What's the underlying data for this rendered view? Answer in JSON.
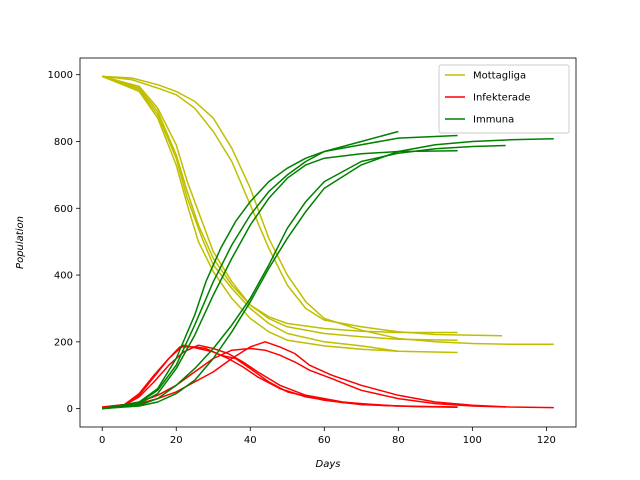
{
  "chart_data": {
    "type": "line",
    "xlabel": "Days",
    "ylabel": "Population",
    "xlim": [
      -6,
      128
    ],
    "ylim": [
      -55,
      1050
    ],
    "xticks": [
      0,
      20,
      40,
      60,
      80,
      100,
      120
    ],
    "yticks": [
      0,
      200,
      400,
      600,
      800,
      1000
    ],
    "grid": false,
    "legend_position": "top-right",
    "legend": [
      {
        "label": "Mottagliga",
        "color": "#bfbf00"
      },
      {
        "label": "Infekterade",
        "color": "#ff0000"
      },
      {
        "label": "Immuna",
        "color": "#008000"
      }
    ],
    "series": [
      {
        "group": "Mottagliga",
        "color": "#bfbf00",
        "points": [
          [
            0,
            995
          ],
          [
            10,
            960
          ],
          [
            15,
            890
          ],
          [
            20,
            760
          ],
          [
            23,
            650
          ],
          [
            26,
            550
          ],
          [
            30,
            450
          ],
          [
            35,
            370
          ],
          [
            40,
            310
          ],
          [
            45,
            275
          ],
          [
            50,
            255
          ],
          [
            60,
            240
          ],
          [
            70,
            232
          ],
          [
            80,
            228
          ],
          [
            96,
            228
          ]
        ]
      },
      {
        "group": "Mottagliga",
        "color": "#bfbf00",
        "points": [
          [
            0,
            995
          ],
          [
            10,
            965
          ],
          [
            15,
            900
          ],
          [
            20,
            790
          ],
          [
            23,
            680
          ],
          [
            27,
            560
          ],
          [
            30,
            470
          ],
          [
            35,
            380
          ],
          [
            40,
            310
          ],
          [
            45,
            270
          ],
          [
            50,
            245
          ],
          [
            60,
            225
          ],
          [
            70,
            215
          ],
          [
            80,
            208
          ],
          [
            96,
            205
          ]
        ]
      },
      {
        "group": "Mottagliga",
        "color": "#bfbf00",
        "points": [
          [
            0,
            995
          ],
          [
            10,
            950
          ],
          [
            15,
            870
          ],
          [
            20,
            730
          ],
          [
            23,
            610
          ],
          [
            26,
            500
          ],
          [
            30,
            410
          ],
          [
            35,
            330
          ],
          [
            40,
            270
          ],
          [
            45,
            230
          ],
          [
            50,
            205
          ],
          [
            60,
            188
          ],
          [
            70,
            178
          ],
          [
            80,
            172
          ],
          [
            96,
            168
          ]
        ]
      },
      {
        "group": "Mottagliga",
        "color": "#bfbf00",
        "points": [
          [
            0,
            995
          ],
          [
            10,
            955
          ],
          [
            15,
            880
          ],
          [
            20,
            750
          ],
          [
            23,
            630
          ],
          [
            27,
            510
          ],
          [
            30,
            430
          ],
          [
            35,
            360
          ],
          [
            40,
            300
          ],
          [
            45,
            255
          ],
          [
            50,
            225
          ],
          [
            60,
            200
          ],
          [
            70,
            188
          ],
          [
            80,
            172
          ]
        ]
      },
      {
        "group": "Mottagliga",
        "color": "#bfbf00",
        "points": [
          [
            0,
            995
          ],
          [
            8,
            985
          ],
          [
            15,
            960
          ],
          [
            20,
            940
          ],
          [
            25,
            900
          ],
          [
            30,
            830
          ],
          [
            35,
            740
          ],
          [
            40,
            610
          ],
          [
            45,
            480
          ],
          [
            50,
            370
          ],
          [
            55,
            300
          ],
          [
            60,
            265
          ],
          [
            70,
            245
          ],
          [
            80,
            230
          ],
          [
            90,
            222
          ],
          [
            108,
            218
          ]
        ]
      },
      {
        "group": "Mottagliga",
        "color": "#bfbf00",
        "points": [
          [
            0,
            995
          ],
          [
            8,
            990
          ],
          [
            15,
            970
          ],
          [
            20,
            950
          ],
          [
            25,
            920
          ],
          [
            30,
            870
          ],
          [
            35,
            780
          ],
          [
            40,
            660
          ],
          [
            45,
            510
          ],
          [
            50,
            400
          ],
          [
            55,
            320
          ],
          [
            60,
            270
          ],
          [
            70,
            235
          ],
          [
            80,
            210
          ],
          [
            90,
            200
          ],
          [
            100,
            195
          ],
          [
            110,
            193
          ],
          [
            122,
            193
          ]
        ]
      },
      {
        "group": "Infekterade",
        "color": "#ff0000",
        "points": [
          [
            0,
            5
          ],
          [
            6,
            12
          ],
          [
            10,
            45
          ],
          [
            14,
            100
          ],
          [
            18,
            150
          ],
          [
            21,
            185
          ],
          [
            25,
            185
          ],
          [
            28,
            180
          ],
          [
            32,
            160
          ],
          [
            36,
            150
          ],
          [
            40,
            120
          ],
          [
            45,
            80
          ],
          [
            50,
            50
          ],
          [
            60,
            25
          ],
          [
            70,
            12
          ],
          [
            80,
            8
          ],
          [
            96,
            5
          ]
        ]
      },
      {
        "group": "Infekterade",
        "color": "#ff0000",
        "points": [
          [
            0,
            3
          ],
          [
            6,
            10
          ],
          [
            10,
            35
          ],
          [
            14,
            80
          ],
          [
            18,
            130
          ],
          [
            22,
            170
          ],
          [
            26,
            190
          ],
          [
            30,
            180
          ],
          [
            34,
            165
          ],
          [
            38,
            140
          ],
          [
            42,
            110
          ],
          [
            48,
            70
          ],
          [
            55,
            40
          ],
          [
            65,
            20
          ],
          [
            75,
            10
          ],
          [
            85,
            6
          ],
          [
            96,
            4
          ]
        ]
      },
      {
        "group": "Infekterade",
        "color": "#ff0000",
        "points": [
          [
            0,
            4
          ],
          [
            6,
            12
          ],
          [
            10,
            40
          ],
          [
            14,
            95
          ],
          [
            18,
            150
          ],
          [
            22,
            190
          ],
          [
            26,
            180
          ],
          [
            30,
            170
          ],
          [
            34,
            150
          ],
          [
            38,
            125
          ],
          [
            42,
            95
          ],
          [
            48,
            60
          ],
          [
            55,
            35
          ],
          [
            65,
            18
          ],
          [
            80,
            8
          ]
        ]
      },
      {
        "group": "Infekterade",
        "color": "#ff0000",
        "points": [
          [
            0,
            2
          ],
          [
            6,
            8
          ],
          [
            10,
            20
          ],
          [
            15,
            40
          ],
          [
            20,
            70
          ],
          [
            25,
            110
          ],
          [
            30,
            150
          ],
          [
            35,
            175
          ],
          [
            40,
            180
          ],
          [
            44,
            175
          ],
          [
            48,
            160
          ],
          [
            52,
            140
          ],
          [
            56,
            115
          ],
          [
            62,
            90
          ],
          [
            70,
            55
          ],
          [
            80,
            30
          ],
          [
            90,
            15
          ],
          [
            100,
            8
          ],
          [
            109,
            5
          ]
        ]
      },
      {
        "group": "Infekterade",
        "color": "#ff0000",
        "points": [
          [
            0,
            2
          ],
          [
            6,
            6
          ],
          [
            10,
            15
          ],
          [
            15,
            30
          ],
          [
            20,
            50
          ],
          [
            25,
            80
          ],
          [
            30,
            110
          ],
          [
            35,
            150
          ],
          [
            40,
            185
          ],
          [
            44,
            200
          ],
          [
            48,
            185
          ],
          [
            52,
            165
          ],
          [
            56,
            130
          ],
          [
            62,
            100
          ],
          [
            70,
            70
          ],
          [
            80,
            40
          ],
          [
            90,
            20
          ],
          [
            100,
            10
          ],
          [
            110,
            5
          ],
          [
            122,
            3
          ]
        ]
      },
      {
        "group": "Immuna",
        "color": "#008000",
        "points": [
          [
            0,
            0
          ],
          [
            10,
            20
          ],
          [
            15,
            60
          ],
          [
            20,
            150
          ],
          [
            25,
            280
          ],
          [
            28,
            380
          ],
          [
            32,
            480
          ],
          [
            36,
            560
          ],
          [
            40,
            620
          ],
          [
            45,
            680
          ],
          [
            50,
            720
          ],
          [
            55,
            750
          ],
          [
            60,
            770
          ],
          [
            70,
            790
          ],
          [
            80,
            810
          ],
          [
            96,
            818
          ]
        ]
      },
      {
        "group": "Immuna",
        "color": "#008000",
        "points": [
          [
            0,
            0
          ],
          [
            10,
            18
          ],
          [
            15,
            55
          ],
          [
            20,
            130
          ],
          [
            25,
            250
          ],
          [
            30,
            380
          ],
          [
            35,
            490
          ],
          [
            40,
            580
          ],
          [
            45,
            650
          ],
          [
            50,
            700
          ],
          [
            55,
            740
          ],
          [
            60,
            770
          ],
          [
            70,
            800
          ],
          [
            80,
            830
          ]
        ]
      },
      {
        "group": "Immuna",
        "color": "#008000",
        "points": [
          [
            0,
            0
          ],
          [
            10,
            15
          ],
          [
            15,
            45
          ],
          [
            20,
            120
          ],
          [
            25,
            220
          ],
          [
            30,
            340
          ],
          [
            35,
            450
          ],
          [
            40,
            550
          ],
          [
            45,
            630
          ],
          [
            50,
            690
          ],
          [
            55,
            730
          ],
          [
            60,
            750
          ],
          [
            70,
            763
          ],
          [
            80,
            770
          ],
          [
            96,
            772
          ]
        ]
      },
      {
        "group": "Immuna",
        "color": "#008000",
        "points": [
          [
            0,
            0
          ],
          [
            10,
            10
          ],
          [
            15,
            30
          ],
          [
            20,
            70
          ],
          [
            25,
            120
          ],
          [
            30,
            180
          ],
          [
            35,
            250
          ],
          [
            40,
            330
          ],
          [
            45,
            430
          ],
          [
            50,
            540
          ],
          [
            55,
            620
          ],
          [
            60,
            680
          ],
          [
            70,
            740
          ],
          [
            80,
            765
          ],
          [
            90,
            778
          ],
          [
            100,
            785
          ],
          [
            109,
            788
          ]
        ]
      },
      {
        "group": "Immuna",
        "color": "#008000",
        "points": [
          [
            0,
            0
          ],
          [
            10,
            8
          ],
          [
            15,
            20
          ],
          [
            20,
            45
          ],
          [
            25,
            85
          ],
          [
            30,
            150
          ],
          [
            35,
            230
          ],
          [
            40,
            320
          ],
          [
            45,
            420
          ],
          [
            50,
            510
          ],
          [
            55,
            590
          ],
          [
            60,
            660
          ],
          [
            70,
            730
          ],
          [
            80,
            770
          ],
          [
            90,
            790
          ],
          [
            100,
            800
          ],
          [
            110,
            805
          ],
          [
            122,
            808
          ]
        ]
      }
    ]
  }
}
